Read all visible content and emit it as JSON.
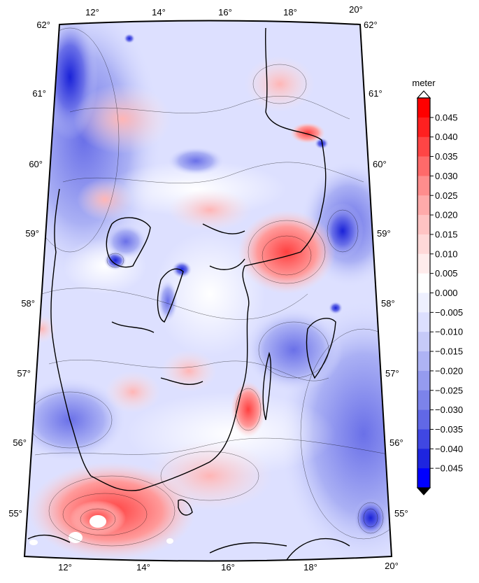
{
  "map": {
    "projection": "conic (Lambert-like), lon 11°–20°E, lat 54.4°–62°N",
    "lon_ticks": [
      "12°",
      "14°",
      "16°",
      "18°",
      "20°"
    ],
    "lat_ticks": [
      "55°",
      "56°",
      "57°",
      "58°",
      "59°",
      "60°",
      "61°",
      "62°"
    ],
    "corner_top_left": "62°",
    "corner_top_right": "62°",
    "corner_top_lon": "20°",
    "corner_bottom_lon": "20°",
    "colors": {
      "positive": "#ff0000",
      "zero": "#ffffff",
      "negative": "#0000ff",
      "coast": "#000000"
    }
  },
  "colorbar": {
    "unit": "meter",
    "labels": [
      "0.045",
      "0.040",
      "0.035",
      "0.030",
      "0.025",
      "0.020",
      "0.015",
      "0.010",
      "0.005",
      "0.000",
      "−0.005",
      "−0.010",
      "−0.015",
      "−0.020",
      "−0.025",
      "−0.030",
      "−0.035",
      "−0.040",
      "−0.045"
    ],
    "colors": [
      "#ff0000",
      "#ff2020",
      "#ff4545",
      "#ff6a6a",
      "#ff8d8d",
      "#ffaaaa",
      "#ffc3c3",
      "#ffd8d8",
      "#ffecec",
      "#ffffff",
      "#eef0ff",
      "#dcdfff",
      "#c6caf8",
      "#aeb3f4",
      "#959bef",
      "#7c83ea",
      "#6168e6",
      "#4047e2",
      "#1e25df",
      "#0000ff"
    ]
  }
}
